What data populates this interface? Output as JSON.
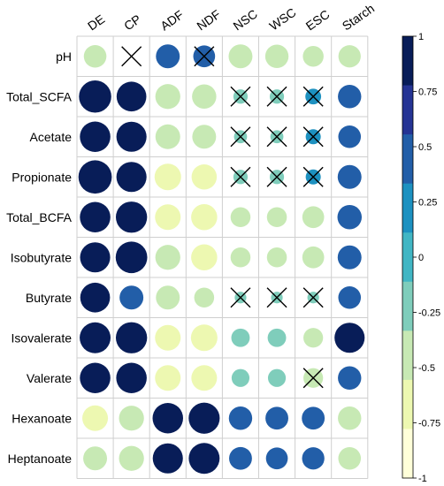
{
  "chart_data": {
    "type": "heatmap",
    "style": "correlation circles, size and color proportional to r",
    "columns": [
      "DE",
      "CP",
      "ADF",
      "NDF",
      "NSC",
      "WSC",
      "ESC",
      "Starch"
    ],
    "rows": [
      "pH",
      "Total_SCFA",
      "Acetate",
      "Propionate",
      "Total_BCFA",
      "Isobutyrate",
      "Butyrate",
      "Isovalerate",
      "Valerate",
      "Hexanoate",
      "Heptanoate"
    ],
    "values": [
      [
        -0.45,
        0.0,
        0.5,
        0.42,
        -0.5,
        -0.48,
        -0.38,
        -0.44
      ],
      [
        0.92,
        0.78,
        -0.55,
        -0.52,
        -0.18,
        -0.18,
        0.22,
        0.48
      ],
      [
        0.82,
        0.8,
        -0.54,
        -0.5,
        -0.15,
        -0.15,
        0.2,
        0.45
      ],
      [
        0.98,
        0.8,
        -0.62,
        -0.56,
        -0.18,
        -0.18,
        0.2,
        0.5
      ],
      [
        0.82,
        0.86,
        -0.58,
        -0.6,
        -0.35,
        -0.35,
        -0.42,
        0.52
      ],
      [
        0.8,
        0.88,
        -0.55,
        -0.6,
        -0.35,
        -0.35,
        -0.42,
        0.5
      ],
      [
        0.78,
        0.5,
        -0.5,
        -0.35,
        -0.12,
        -0.12,
        -0.12,
        0.45
      ],
      [
        0.84,
        0.86,
        -0.58,
        -0.62,
        -0.3,
        -0.3,
        -0.34,
        0.8
      ],
      [
        0.82,
        0.82,
        -0.58,
        -0.58,
        -0.28,
        -0.28,
        -0.34,
        0.48
      ],
      [
        -0.58,
        -0.55,
        0.82,
        0.85,
        0.48,
        0.46,
        0.46,
        -0.48
      ],
      [
        -0.5,
        -0.55,
        0.8,
        0.84,
        0.46,
        0.42,
        0.44,
        -0.45
      ]
    ],
    "not_significant": [
      [
        0,
        1
      ],
      [
        0,
        3
      ],
      [
        1,
        4
      ],
      [
        1,
        5
      ],
      [
        1,
        6
      ],
      [
        2,
        4
      ],
      [
        2,
        5
      ],
      [
        2,
        6
      ],
      [
        3,
        4
      ],
      [
        3,
        5
      ],
      [
        3,
        6
      ],
      [
        6,
        4
      ],
      [
        6,
        5
      ],
      [
        6,
        6
      ],
      [
        8,
        6
      ]
    ],
    "colorbar": {
      "range": [
        -1,
        1
      ],
      "tick_labels": [
        "1",
        "0.75",
        "0.5",
        "0.25",
        "0",
        "-0.25",
        "-0.5",
        "-0.75",
        "-1"
      ],
      "colors_low_to_high": [
        "#ffffd9",
        "#edf8b1",
        "#c7e9b4",
        "#7fcdbb",
        "#41b6c4",
        "#1d91c0",
        "#225ea8",
        "#253494",
        "#081d58"
      ]
    },
    "grid": true,
    "legend": "colorbar at right"
  }
}
